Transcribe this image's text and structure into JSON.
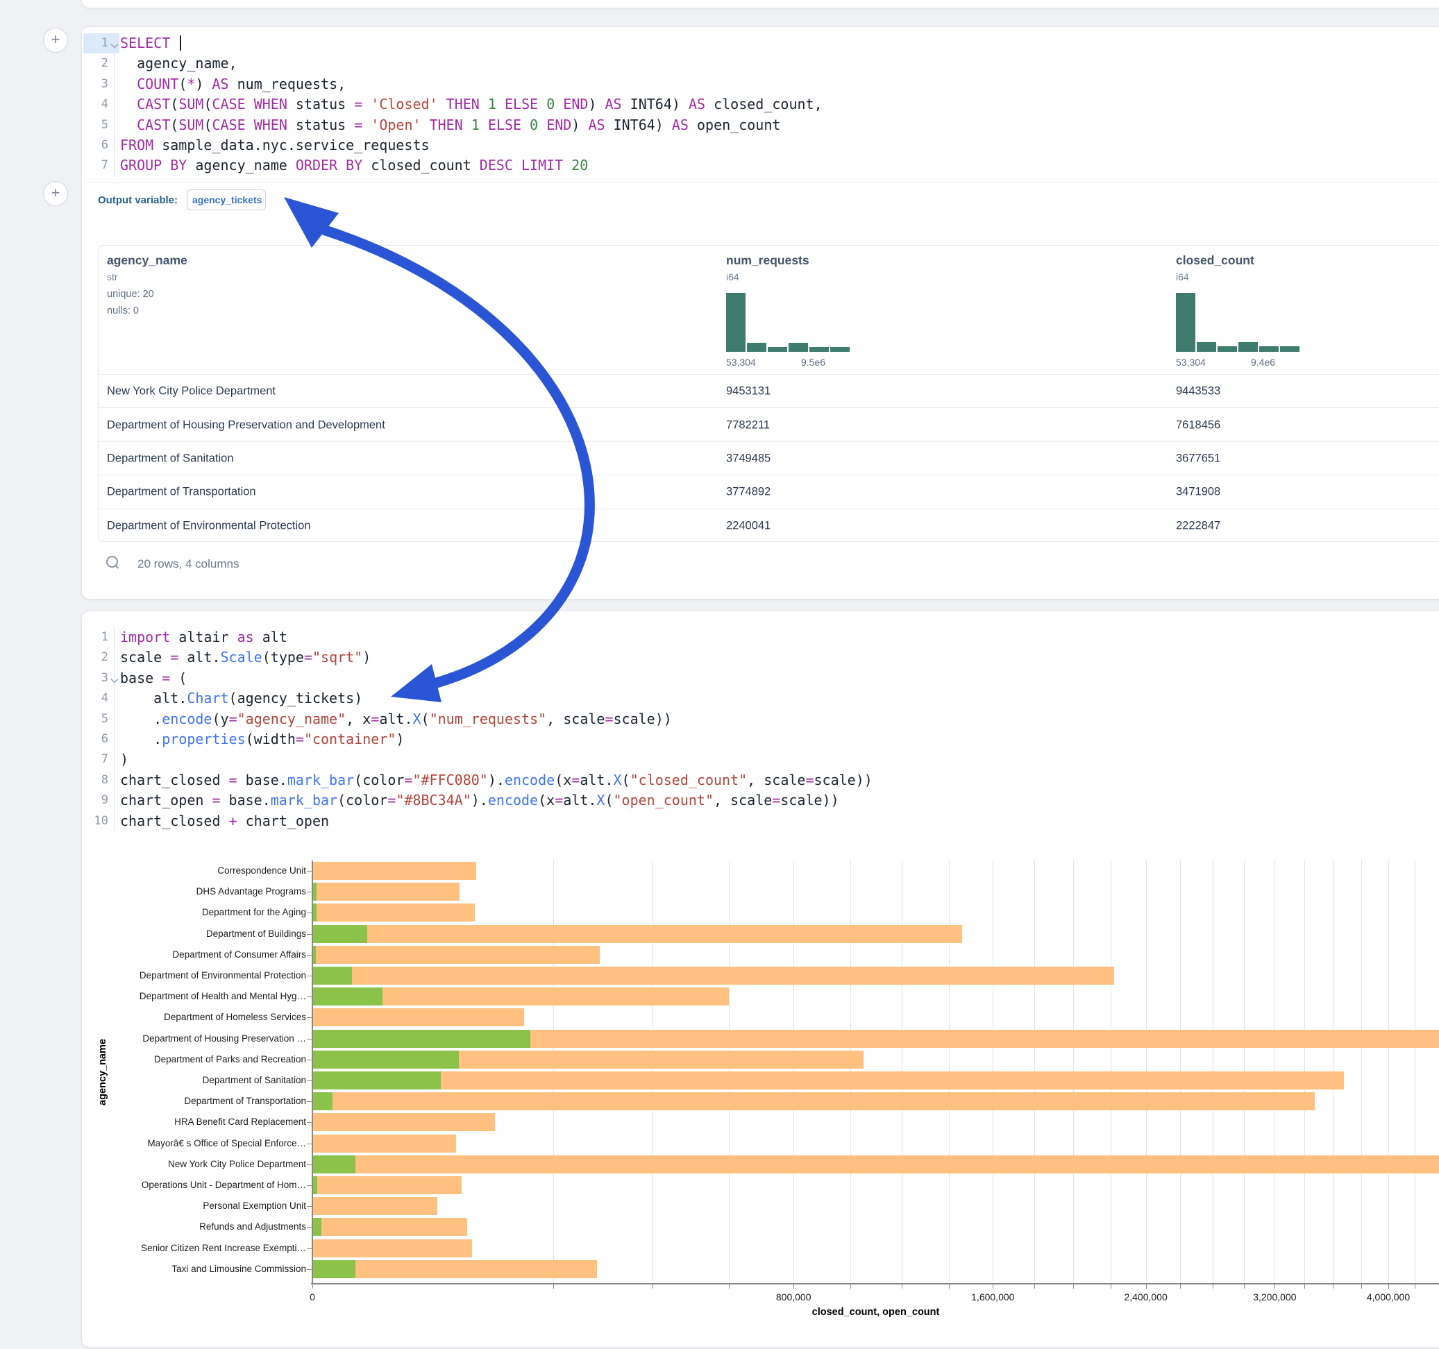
{
  "colors": {
    "arrow": "#2a56d6",
    "hist_bar": "#3e7c6d",
    "bar_closed": "#FFC080",
    "bar_open": "#8BC34A",
    "syntax_keyword": "#a22ba6",
    "syntax_string": "#b5443a",
    "syntax_number": "#3b8244",
    "syntax_function": "#3f74f0"
  },
  "sql_cell": {
    "lines": [
      {
        "n": "1",
        "chev": true,
        "caret": true,
        "toks": [
          [
            "k",
            "SELECT"
          ],
          [
            "t",
            " "
          ]
        ]
      },
      {
        "n": "2",
        "toks": [
          [
            "t",
            "  agency_name,"
          ]
        ]
      },
      {
        "n": "3",
        "toks": [
          [
            "t",
            "  "
          ],
          [
            "k",
            "COUNT"
          ],
          [
            "t",
            "("
          ],
          [
            "o",
            "*"
          ],
          [
            "t",
            ") "
          ],
          [
            "k",
            "AS"
          ],
          [
            "t",
            " num_requests,"
          ]
        ]
      },
      {
        "n": "4",
        "toks": [
          [
            "t",
            "  "
          ],
          [
            "k",
            "CAST"
          ],
          [
            "t",
            "("
          ],
          [
            "k",
            "SUM"
          ],
          [
            "t",
            "("
          ],
          [
            "k",
            "CASE"
          ],
          [
            "t",
            " "
          ],
          [
            "k",
            "WHEN"
          ],
          [
            "t",
            " status "
          ],
          [
            "o",
            "="
          ],
          [
            "t",
            " "
          ],
          [
            "s",
            "'Closed'"
          ],
          [
            "t",
            " "
          ],
          [
            "k",
            "THEN"
          ],
          [
            "t",
            " "
          ],
          [
            "n",
            "1"
          ],
          [
            "t",
            " "
          ],
          [
            "k",
            "ELSE"
          ],
          [
            "t",
            " "
          ],
          [
            "n",
            "0"
          ],
          [
            "t",
            " "
          ],
          [
            "k",
            "END"
          ],
          [
            "t",
            ") "
          ],
          [
            "k",
            "AS"
          ],
          [
            "t",
            " INT64) "
          ],
          [
            "k",
            "AS"
          ],
          [
            "t",
            " closed_count,"
          ]
        ]
      },
      {
        "n": "5",
        "toks": [
          [
            "t",
            "  "
          ],
          [
            "k",
            "CAST"
          ],
          [
            "t",
            "("
          ],
          [
            "k",
            "SUM"
          ],
          [
            "t",
            "("
          ],
          [
            "k",
            "CASE"
          ],
          [
            "t",
            " "
          ],
          [
            "k",
            "WHEN"
          ],
          [
            "t",
            " status "
          ],
          [
            "o",
            "="
          ],
          [
            "t",
            " "
          ],
          [
            "s",
            "'Open'"
          ],
          [
            "t",
            " "
          ],
          [
            "k",
            "THEN"
          ],
          [
            "t",
            " "
          ],
          [
            "n",
            "1"
          ],
          [
            "t",
            " "
          ],
          [
            "k",
            "ELSE"
          ],
          [
            "t",
            " "
          ],
          [
            "n",
            "0"
          ],
          [
            "t",
            " "
          ],
          [
            "k",
            "END"
          ],
          [
            "t",
            ") "
          ],
          [
            "k",
            "AS"
          ],
          [
            "t",
            " INT64) "
          ],
          [
            "k",
            "AS"
          ],
          [
            "t",
            " open_count"
          ]
        ]
      },
      {
        "n": "6",
        "toks": [
          [
            "k",
            "FROM"
          ],
          [
            "t",
            " sample_data.nyc.service_requests"
          ]
        ]
      },
      {
        "n": "7",
        "toks": [
          [
            "k",
            "GROUP BY"
          ],
          [
            "t",
            " agency_name "
          ],
          [
            "k",
            "ORDER BY"
          ],
          [
            "t",
            " closed_count "
          ],
          [
            "k",
            "DESC"
          ],
          [
            "t",
            " "
          ],
          [
            "k",
            "LIMIT"
          ],
          [
            "t",
            " "
          ],
          [
            "n",
            "20"
          ]
        ]
      }
    ],
    "output_variable_label": "Output variable:",
    "output_variable_value": "agency_tickets"
  },
  "result_table": {
    "columns": [
      {
        "name": "agency_name",
        "type": "str",
        "stats": [
          "unique: 20",
          "nulls: 0"
        ]
      },
      {
        "name": "num_requests",
        "type": "i64",
        "hist": [
          85,
          13,
          7,
          13,
          7,
          7
        ],
        "hist_labels": [
          "53,304",
          "9.5e6"
        ]
      },
      {
        "name": "closed_count",
        "type": "i64",
        "hist": [
          85,
          14,
          8,
          14,
          8,
          8
        ],
        "hist_labels": [
          "53,304",
          "9.4e6"
        ]
      }
    ],
    "rows": [
      [
        "New York City Police Department",
        "9453131",
        "9443533"
      ],
      [
        "Department of Housing Preservation and Development",
        "7782211",
        "7618456"
      ],
      [
        "Department of Sanitation",
        "3749485",
        "3677651"
      ],
      [
        "Department of Transportation",
        "3774892",
        "3471908"
      ],
      [
        "Department of Environmental Protection",
        "2240041",
        "2222847"
      ]
    ],
    "footer": "20 rows, 4 columns"
  },
  "python_cell": {
    "lines": [
      {
        "n": "1",
        "toks": [
          [
            "k",
            "import"
          ],
          [
            "t",
            " altair "
          ],
          [
            "k",
            "as"
          ],
          [
            "t",
            " alt"
          ]
        ]
      },
      {
        "n": "2",
        "toks": [
          [
            "t",
            "scale "
          ],
          [
            "o",
            "="
          ],
          [
            "t",
            " alt."
          ],
          [
            "f",
            "Scale"
          ],
          [
            "t",
            "(type"
          ],
          [
            "o",
            "="
          ],
          [
            "s",
            "\"sqrt\""
          ],
          [
            "t",
            ")"
          ]
        ]
      },
      {
        "n": "3",
        "chev": true,
        "toks": [
          [
            "t",
            "base "
          ],
          [
            "o",
            "="
          ],
          [
            "t",
            " ("
          ]
        ]
      },
      {
        "n": "4",
        "toks": [
          [
            "t",
            "    alt."
          ],
          [
            "f",
            "Chart"
          ],
          [
            "t",
            "(agency_tickets)"
          ]
        ]
      },
      {
        "n": "5",
        "toks": [
          [
            "t",
            "    ."
          ],
          [
            "f",
            "encode"
          ],
          [
            "t",
            "(y"
          ],
          [
            "o",
            "="
          ],
          [
            "s",
            "\"agency_name\""
          ],
          [
            "t",
            ", x"
          ],
          [
            "o",
            "="
          ],
          [
            "t",
            "alt."
          ],
          [
            "f",
            "X"
          ],
          [
            "t",
            "("
          ],
          [
            "s",
            "\"num_requests\""
          ],
          [
            "t",
            ", scale"
          ],
          [
            "o",
            "="
          ],
          [
            "t",
            "scale))"
          ]
        ]
      },
      {
        "n": "6",
        "toks": [
          [
            "t",
            "    ."
          ],
          [
            "f",
            "properties"
          ],
          [
            "t",
            "(width"
          ],
          [
            "o",
            "="
          ],
          [
            "s",
            "\"container\""
          ],
          [
            "t",
            ")"
          ]
        ]
      },
      {
        "n": "7",
        "toks": [
          [
            "t",
            ")"
          ]
        ]
      },
      {
        "n": "8",
        "toks": [
          [
            "t",
            "chart_closed "
          ],
          [
            "o",
            "="
          ],
          [
            "t",
            " base."
          ],
          [
            "f",
            "mark_bar"
          ],
          [
            "t",
            "(color"
          ],
          [
            "o",
            "="
          ],
          [
            "s",
            "\"#FFC080\""
          ],
          [
            "t",
            ")."
          ],
          [
            "f",
            "encode"
          ],
          [
            "t",
            "(x"
          ],
          [
            "o",
            "="
          ],
          [
            "t",
            "alt."
          ],
          [
            "f",
            "X"
          ],
          [
            "t",
            "("
          ],
          [
            "s",
            "\"closed_count\""
          ],
          [
            "t",
            ", scale"
          ],
          [
            "o",
            "="
          ],
          [
            "t",
            "scale))"
          ]
        ]
      },
      {
        "n": "9",
        "toks": [
          [
            "t",
            "chart_open "
          ],
          [
            "o",
            "="
          ],
          [
            "t",
            " base."
          ],
          [
            "f",
            "mark_bar"
          ],
          [
            "t",
            "(color"
          ],
          [
            "o",
            "="
          ],
          [
            "s",
            "\"#8BC34A\""
          ],
          [
            "t",
            ")."
          ],
          [
            "f",
            "encode"
          ],
          [
            "t",
            "(x"
          ],
          [
            "o",
            "="
          ],
          [
            "t",
            "alt."
          ],
          [
            "f",
            "X"
          ],
          [
            "t",
            "("
          ],
          [
            "s",
            "\"open_count\""
          ],
          [
            "t",
            ", scale"
          ],
          [
            "o",
            "="
          ],
          [
            "t",
            "scale))"
          ]
        ]
      },
      {
        "n": "10",
        "toks": [
          [
            "t",
            "chart_closed "
          ],
          [
            "o",
            "+"
          ],
          [
            "t",
            " chart_open"
          ]
        ]
      }
    ]
  },
  "chart_data": {
    "type": "bar",
    "orientation": "horizontal",
    "scale": "sqrt",
    "title": "",
    "xlabel": "closed_count, open_count",
    "ylabel": "agency_name",
    "legend": "none",
    "grid": {
      "step": 200000,
      "max": 4400000
    },
    "x_ticks": [
      {
        "v": 0,
        "t": "0"
      },
      {
        "v": 800000,
        "t": "800,000"
      },
      {
        "v": 1600000,
        "t": "1,600,000"
      },
      {
        "v": 2400000,
        "t": "2,400,000"
      },
      {
        "v": 3200000,
        "t": "3,200,000"
      },
      {
        "v": 4000000,
        "t": "4,000,000"
      }
    ],
    "xlim_visible": [
      0,
      4380000
    ],
    "categories": [
      "Correspondence Unit",
      "DHS Advantage Programs",
      "Department for the Aging",
      "Department of Buildings",
      "Department of Consumer Affairs",
      "Department of Environmental Protection",
      "Department of Health and Mental Hyg…",
      "Department of Homeless Services",
      "Department of Housing Preservation …",
      "Department of Parks and Recreation",
      "Department of Sanitation",
      "Department of Transportation",
      "HRA Benefit Card Replacement",
      "Mayorâ€ s Office of Special Enforce…",
      "New York City Police Department",
      "Operations Unit - Department of Hom…",
      "Personal Exemption Unit",
      "Refunds and Adjustments",
      "Senior Citizen Rent Increase Exempti…",
      "Taxi and Limousine Commission"
    ],
    "series": [
      {
        "name": "closed_count",
        "color": "#FFC080",
        "values": [
          93000,
          75000,
          91000,
          1460000,
          285000,
          2222847,
          600000,
          155000,
          7618456,
          1050000,
          3677651,
          3471908,
          115000,
          71000,
          9443533,
          77000,
          54000,
          83000,
          88000,
          280000
        ]
      },
      {
        "name": "open_count",
        "color": "#8BC34A",
        "values": [
          0,
          60,
          60,
          10500,
          50,
          5400,
          17000,
          0,
          163755,
          74000,
          57000,
          1400,
          0,
          0,
          6300,
          80,
          0,
          280,
          0,
          6300
        ]
      }
    ]
  }
}
